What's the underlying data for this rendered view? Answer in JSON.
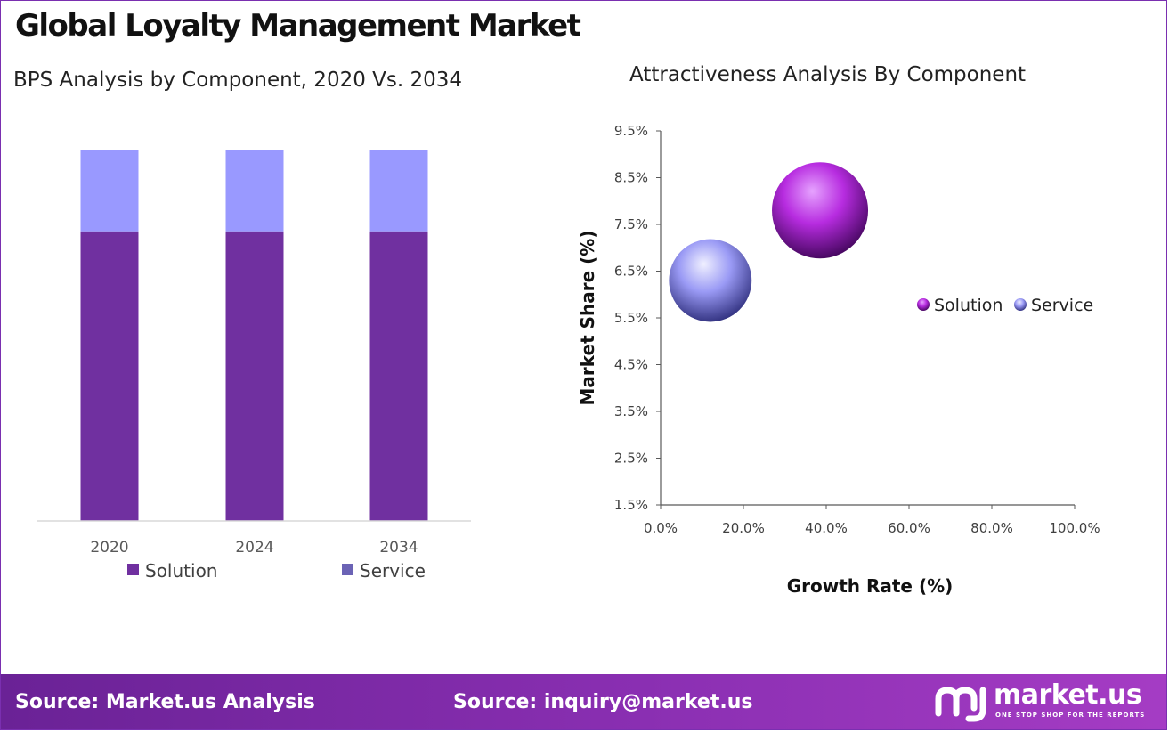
{
  "title": "Global Loyalty Management Market",
  "left_subtitle": "BPS Analysis by Component, 2020 Vs. 2034",
  "right_subtitle": "Attractiveness  Analysis By Component",
  "colors": {
    "solution": "#7030a0",
    "service": "#9999ff",
    "accent": "#7a2fb0"
  },
  "chart_data": [
    {
      "type": "bar",
      "stacked": true,
      "categories": [
        "2020",
        "2024",
        "2034"
      ],
      "series": [
        {
          "name": "Solution",
          "values": [
            78,
            78,
            78
          ]
        },
        {
          "name": "Service",
          "values": [
            22,
            22,
            22
          ]
        }
      ],
      "ylim": [
        0,
        100
      ],
      "legend_position": "bottom",
      "grid": false
    },
    {
      "type": "scatter",
      "style": "bubble",
      "xlabel": "Growth Rate (%)",
      "ylabel": "Market Share (%)",
      "xlim": [
        0,
        100
      ],
      "ylim": [
        1.5,
        9.5
      ],
      "x_ticks": [
        "0.0%",
        "20.0%",
        "40.0%",
        "60.0%",
        "80.0%",
        "100.0%"
      ],
      "y_ticks": [
        "1.5%",
        "2.5%",
        "3.5%",
        "4.5%",
        "5.5%",
        "6.5%",
        "7.5%",
        "8.5%",
        "9.5%"
      ],
      "series": [
        {
          "name": "Solution",
          "x": 38.5,
          "y": 7.8,
          "size": 1.0
        },
        {
          "name": "Service",
          "x": 12,
          "y": 6.3,
          "size": 0.86
        }
      ],
      "legend_position": "right",
      "grid": false
    }
  ],
  "footer": {
    "source_left": "Source: Market.us Analysis",
    "source_right": "Source: inquiry@market.us",
    "brand": "market.us",
    "tagline": "ONE STOP SHOP FOR THE REPORTS"
  }
}
